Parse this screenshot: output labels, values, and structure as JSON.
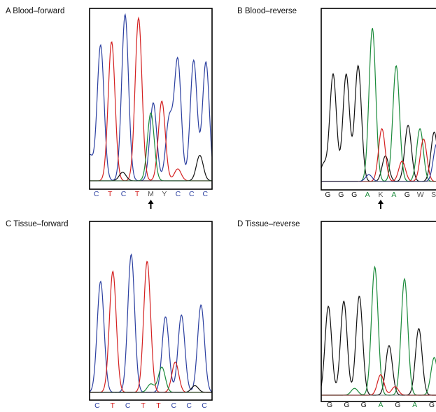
{
  "colors": {
    "A": "#1a8a3a",
    "C": "#2b3fa0",
    "G": "#111111",
    "T": "#d42020",
    "N": "#555555",
    "frame": "#000000"
  },
  "panels": [
    {
      "id": "A",
      "label": "A  Blood–forward",
      "bases": [
        "C",
        "T",
        "C",
        "T",
        "M",
        "Y",
        "C",
        "C",
        "C"
      ],
      "arrow_at_base": 4,
      "peaks": [
        {
          "base": "C",
          "pos": 0.0,
          "h": 0.15
        },
        {
          "base": "C",
          "pos": 0.09,
          "h": 0.8
        },
        {
          "base": "T",
          "pos": 0.18,
          "h": 0.82
        },
        {
          "base": "G",
          "pos": 0.27,
          "h": 0.05
        },
        {
          "base": "C",
          "pos": 0.29,
          "h": 0.98
        },
        {
          "base": "T",
          "pos": 0.4,
          "h": 0.96
        },
        {
          "base": "A",
          "pos": 0.5,
          "h": 0.4
        },
        {
          "base": "C",
          "pos": 0.52,
          "h": 0.46
        },
        {
          "base": "T",
          "pos": 0.59,
          "h": 0.47
        },
        {
          "base": "C",
          "pos": 0.65,
          "h": 0.36
        },
        {
          "base": "C",
          "pos": 0.72,
          "h": 0.71
        },
        {
          "base": "C",
          "pos": 0.85,
          "h": 0.71
        },
        {
          "base": "C",
          "pos": 0.95,
          "h": 0.7
        },
        {
          "base": "G",
          "pos": 0.9,
          "h": 0.15
        },
        {
          "base": "T",
          "pos": 0.72,
          "h": 0.07
        }
      ]
    },
    {
      "id": "B",
      "label": "B  Blood–reverse",
      "bases": [
        "G",
        "G",
        "G",
        "A",
        "K",
        "A",
        "G",
        "W",
        "S"
      ],
      "arrow_at_base": 4,
      "peaks": [
        {
          "base": "G",
          "pos": 0.02,
          "h": 0.1
        },
        {
          "base": "G",
          "pos": 0.1,
          "h": 0.63
        },
        {
          "base": "G",
          "pos": 0.21,
          "h": 0.63
        },
        {
          "base": "G",
          "pos": 0.31,
          "h": 0.68
        },
        {
          "base": "A",
          "pos": 0.43,
          "h": 0.9
        },
        {
          "base": "T",
          "pos": 0.51,
          "h": 0.31
        },
        {
          "base": "G",
          "pos": 0.54,
          "h": 0.15
        },
        {
          "base": "A",
          "pos": 0.63,
          "h": 0.68
        },
        {
          "base": "G",
          "pos": 0.73,
          "h": 0.33
        },
        {
          "base": "A",
          "pos": 0.83,
          "h": 0.31
        },
        {
          "base": "T",
          "pos": 0.86,
          "h": 0.25
        },
        {
          "base": "G",
          "pos": 0.95,
          "h": 0.29
        },
        {
          "base": "C",
          "pos": 0.97,
          "h": 0.22
        },
        {
          "base": "T",
          "pos": 0.68,
          "h": 0.12
        },
        {
          "base": "C",
          "pos": 0.4,
          "h": 0.04
        }
      ]
    },
    {
      "id": "C",
      "label": "C  Tissue–forward",
      "bases": [
        "C",
        "T",
        "C",
        "T",
        "T",
        "C",
        "C",
        "C"
      ],
      "arrow_at_base": null,
      "peaks": [
        {
          "base": "C",
          "pos": 0.09,
          "h": 0.66
        },
        {
          "base": "T",
          "pos": 0.19,
          "h": 0.72
        },
        {
          "base": "C",
          "pos": 0.34,
          "h": 0.82
        },
        {
          "base": "T",
          "pos": 0.47,
          "h": 0.78
        },
        {
          "base": "A",
          "pos": 0.59,
          "h": 0.15
        },
        {
          "base": "C",
          "pos": 0.62,
          "h": 0.45
        },
        {
          "base": "T",
          "pos": 0.7,
          "h": 0.18
        },
        {
          "base": "C",
          "pos": 0.75,
          "h": 0.46
        },
        {
          "base": "C",
          "pos": 0.91,
          "h": 0.52
        },
        {
          "base": "A",
          "pos": 0.5,
          "h": 0.05
        },
        {
          "base": "G",
          "pos": 0.86,
          "h": 0.04
        }
      ]
    },
    {
      "id": "D",
      "label": "D  Tissue–reverse",
      "bases": [
        "G",
        "G",
        "G",
        "A",
        "G",
        "A",
        "G"
      ],
      "arrow_at_base": null,
      "peaks": [
        {
          "base": "G",
          "pos": 0.06,
          "h": 0.52
        },
        {
          "base": "G",
          "pos": 0.19,
          "h": 0.55
        },
        {
          "base": "G",
          "pos": 0.32,
          "h": 0.58
        },
        {
          "base": "A",
          "pos": 0.45,
          "h": 0.75
        },
        {
          "base": "T",
          "pos": 0.5,
          "h": 0.12
        },
        {
          "base": "G",
          "pos": 0.57,
          "h": 0.29
        },
        {
          "base": "A",
          "pos": 0.7,
          "h": 0.68
        },
        {
          "base": "G",
          "pos": 0.82,
          "h": 0.39
        },
        {
          "base": "A",
          "pos": 0.95,
          "h": 0.22
        },
        {
          "base": "T",
          "pos": 0.62,
          "h": 0.05
        },
        {
          "base": "A",
          "pos": 0.28,
          "h": 0.04
        }
      ]
    }
  ]
}
